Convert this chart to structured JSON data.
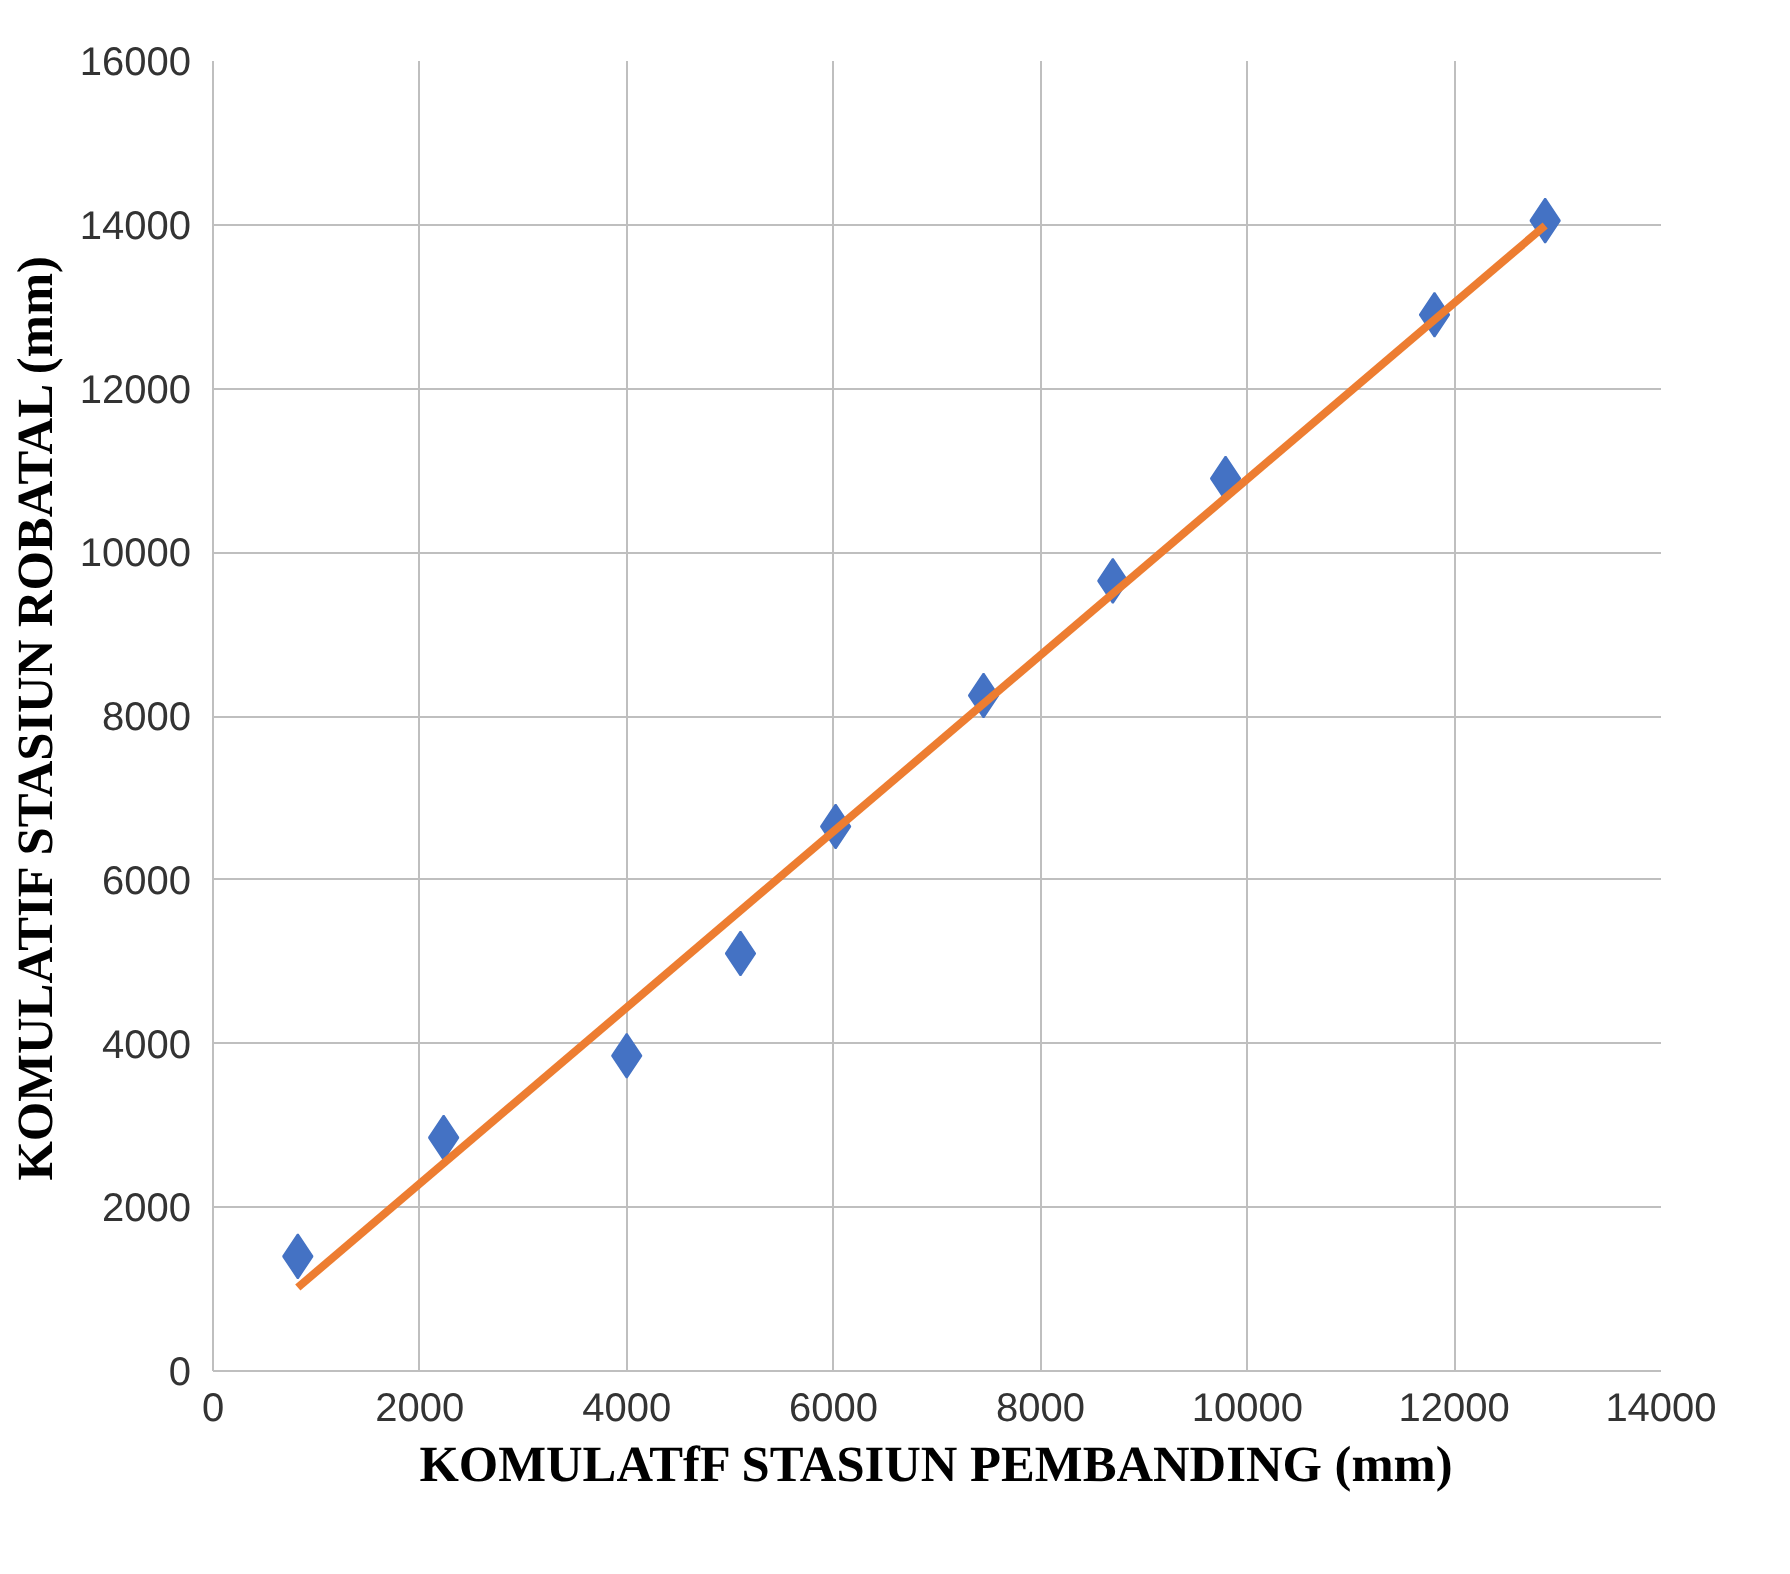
{
  "chart_data": {
    "type": "scatter",
    "xlabel": "KOMULATfF STASIUN PEMBANDING (mm)",
    "ylabel": "KOMULATIF STASIUN ROBATAL (mm)",
    "xlim": [
      0,
      14000
    ],
    "ylim": [
      0,
      16000
    ],
    "xticks": [
      0,
      2000,
      4000,
      6000,
      8000,
      10000,
      12000,
      14000
    ],
    "yticks": [
      0,
      2000,
      4000,
      6000,
      8000,
      10000,
      12000,
      14000,
      16000
    ],
    "grid": true,
    "marker": "diamond",
    "series": [
      {
        "color": "#4472c4",
        "x": [
          820,
          2230,
          4000,
          5100,
          6020,
          7450,
          8700,
          9790,
          11810,
          12880
        ],
        "values": [
          1400,
          2850,
          3850,
          5100,
          6650,
          8250,
          9650,
          10900,
          12900,
          14050
        ]
      },
      {
        "type": "line",
        "marker": "none",
        "color": "#ed7d31",
        "x": [
          820,
          12880
        ],
        "values": [
          1020,
          13990
        ]
      }
    ]
  }
}
